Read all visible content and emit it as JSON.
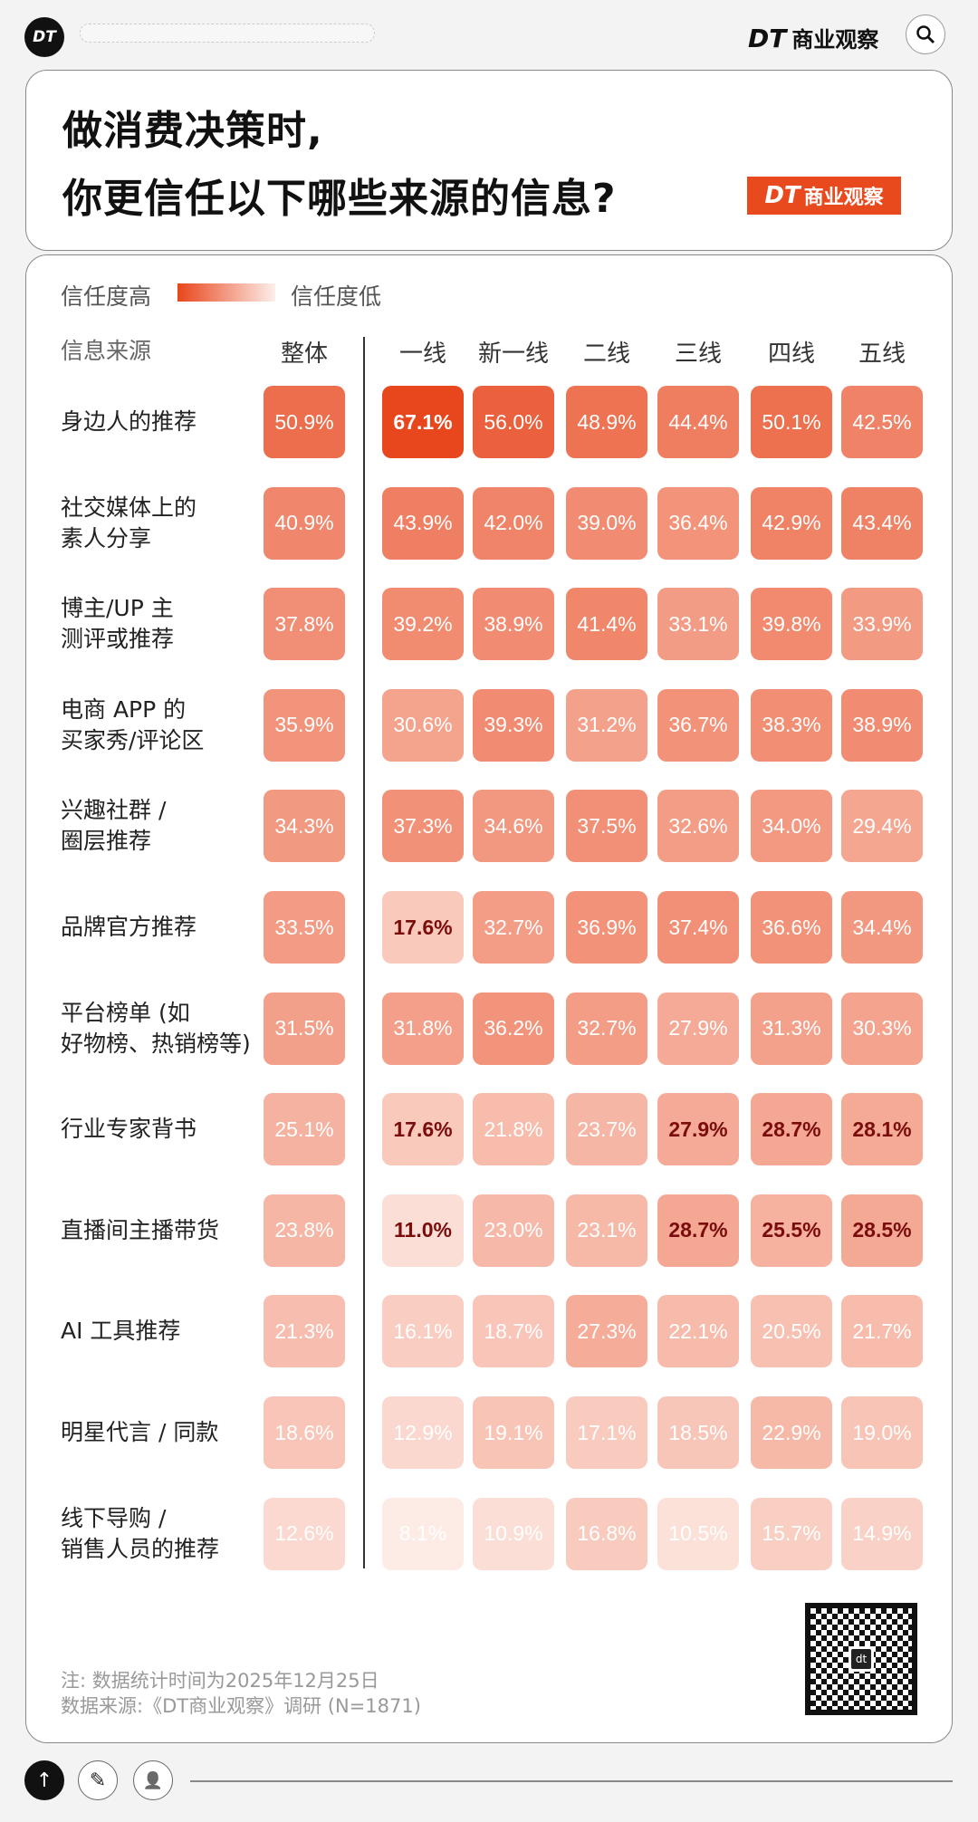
{
  "header": {
    "logo": "DT",
    "brand_mark": "DT",
    "brand_name": "商业观察",
    "search_icon": "search-icon"
  },
  "title": {
    "line1": "做消费决策时,",
    "line2": "你更信任以下哪些来源的信息?",
    "badge_mark": "DT",
    "badge_name": "商业观察"
  },
  "legend": {
    "high": "信任度高",
    "low": "信任度低",
    "color_high": "#e8461c",
    "color_low": "#fdeeea"
  },
  "chart_data": {
    "type": "heatmap",
    "row_header": "信息来源",
    "columns": [
      "整体",
      "一线",
      "新一线",
      "二线",
      "三线",
      "四线",
      "五线"
    ],
    "rows": [
      {
        "label": "身边人的推荐",
        "values": [
          "50.9%",
          "67.1%",
          "56.0%",
          "48.9%",
          "44.4%",
          "50.1%",
          "42.5%"
        ]
      },
      {
        "label": "社交媒体上的\n素人分享",
        "values": [
          "40.9%",
          "43.9%",
          "42.0%",
          "39.0%",
          "36.4%",
          "42.9%",
          "43.4%"
        ]
      },
      {
        "label": "博主/UP 主\n测评或推荐",
        "values": [
          "37.8%",
          "39.2%",
          "38.9%",
          "41.4%",
          "33.1%",
          "39.8%",
          "33.9%"
        ]
      },
      {
        "label": "电商 APP 的\n买家秀/评论区",
        "values": [
          "35.9%",
          "30.6%",
          "39.3%",
          "31.2%",
          "36.7%",
          "38.3%",
          "38.9%"
        ]
      },
      {
        "label": "兴趣社群 /\n圈层推荐",
        "values": [
          "34.3%",
          "37.3%",
          "34.6%",
          "37.5%",
          "32.6%",
          "34.0%",
          "29.4%"
        ]
      },
      {
        "label": "品牌官方推荐",
        "values": [
          "33.5%",
          "17.6%",
          "32.7%",
          "36.9%",
          "37.4%",
          "36.6%",
          "34.4%"
        ]
      },
      {
        "label": "平台榜单 (如\n好物榜、热销榜等)",
        "values": [
          "31.5%",
          "31.8%",
          "36.2%",
          "32.7%",
          "27.9%",
          "31.3%",
          "30.3%"
        ]
      },
      {
        "label": "行业专家背书",
        "values": [
          "25.1%",
          "17.6%",
          "21.8%",
          "23.7%",
          "27.9%",
          "28.7%",
          "28.1%"
        ]
      },
      {
        "label": "直播间主播带货",
        "values": [
          "23.8%",
          "11.0%",
          "23.0%",
          "23.1%",
          "28.7%",
          "25.5%",
          "28.5%"
        ]
      },
      {
        "label": "AI 工具推荐",
        "values": [
          "21.3%",
          "16.1%",
          "18.7%",
          "27.3%",
          "22.1%",
          "20.5%",
          "21.7%"
        ]
      },
      {
        "label": "明星代言 / 同款",
        "values": [
          "18.6%",
          "12.9%",
          "19.1%",
          "17.1%",
          "18.5%",
          "22.9%",
          "19.0%"
        ]
      },
      {
        "label": "线下导购 /\n销售人员的推荐",
        "values": [
          "12.6%",
          "8.1%",
          "10.9%",
          "16.8%",
          "10.5%",
          "15.7%",
          "14.9%"
        ]
      }
    ],
    "emphasized": [
      [
        0,
        1,
        "light"
      ],
      [
        5,
        1,
        "dark"
      ],
      [
        7,
        1,
        "dark"
      ],
      [
        7,
        4,
        "dark"
      ],
      [
        7,
        5,
        "dark"
      ],
      [
        7,
        6,
        "dark"
      ],
      [
        8,
        1,
        "dark"
      ],
      [
        8,
        4,
        "dark"
      ],
      [
        8,
        5,
        "dark"
      ],
      [
        8,
        6,
        "dark"
      ]
    ]
  },
  "footer": {
    "note": "注: 数据统计时间为2025年12月25日",
    "source": "数据来源:《DT商业观察》调研 (N=1871)",
    "qr_label": "dt"
  },
  "bottom_bar": {
    "up": "↑",
    "edit": "✎",
    "profile": "👤"
  }
}
